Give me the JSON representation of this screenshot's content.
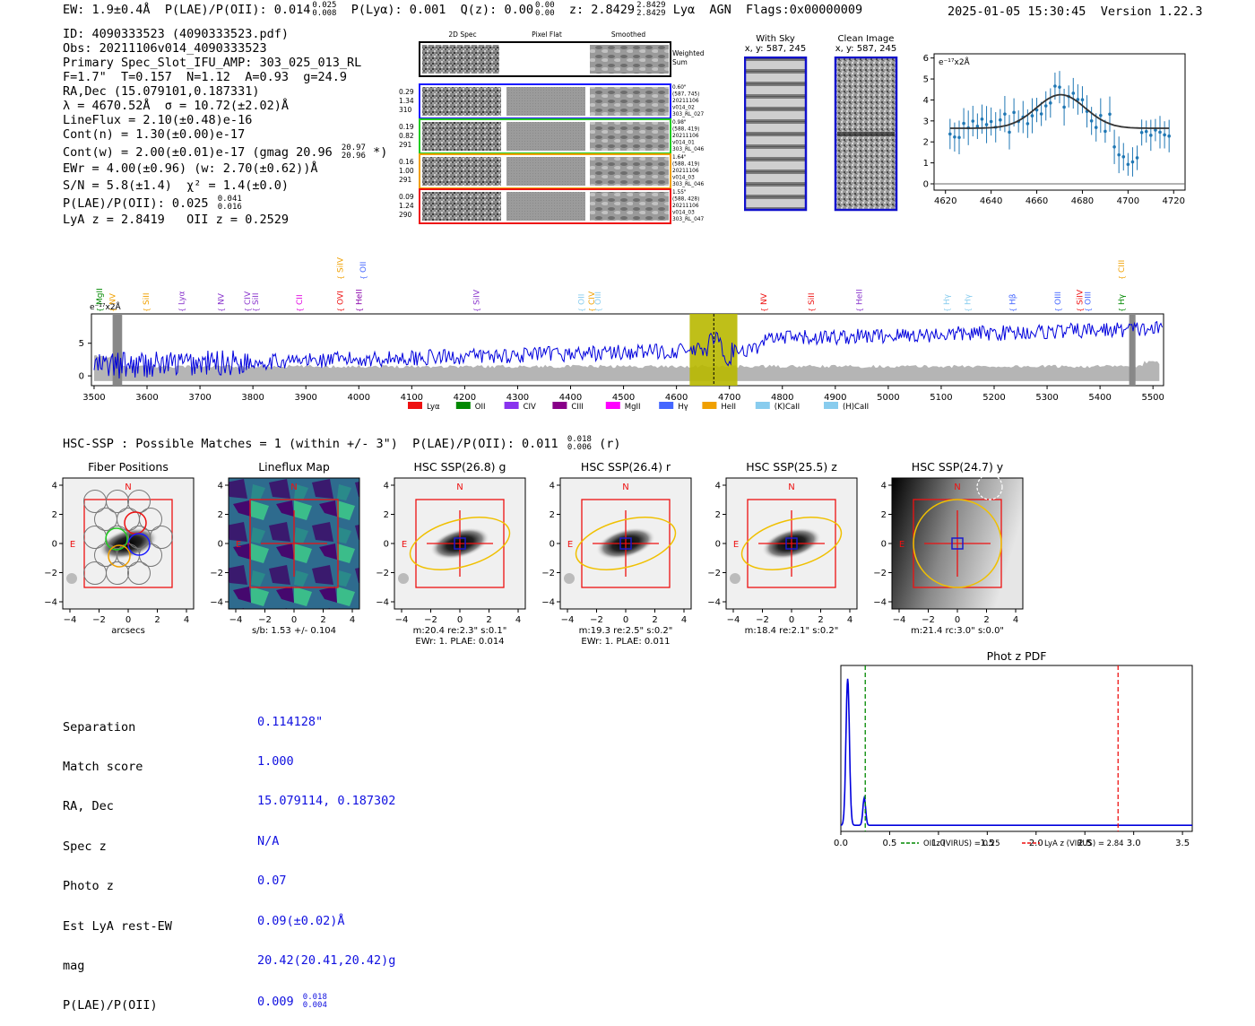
{
  "header": {
    "ew_label": "EW: 1.9±0.4Å",
    "plae_label": "P(LAE)/P(OII): 0.014",
    "plae_hi": "0.025",
    "plae_lo": "0.008",
    "plya_label": "P(Lyα): 0.001",
    "qz_label": "Q(z): 0.00",
    "qz_hi": "0.00",
    "qz_lo": "0.00",
    "z_label": "z: 2.8429",
    "z_hi": "2.8429",
    "z_lo": "2.8429",
    "line_name": "Lyα",
    "class": "AGN",
    "flags": "Flags:0x00000009",
    "timestamp": "2025-01-05 15:30:45",
    "version": "Version 1.22.3"
  },
  "info": {
    "id": "ID: 4090333523 (4090333523.pdf)",
    "obs": "Obs: 20211106v014_4090333523",
    "primary": "Primary Spec_Slot_IFU_AMP: 303_025_013_RL",
    "params": "F=1.7\"  T=0.157  N=1.12  A=0.93  g=24.9",
    "radec": "RA,Dec (15.079101,0.187331)",
    "lambda": "λ = 4670.52Å  σ = 10.72(±2.02)Å",
    "lineflux": "LineFlux = 2.10(±0.48)e-16",
    "cont_n": "Cont(n) = 1.30(±0.00)e-17",
    "cont_w": "Cont(w) = 2.00(±0.01)e-17 (gmag 20.96",
    "cont_w_hi": "20.97",
    "cont_w_lo": "20.96",
    "cont_w_end": "*)",
    "ewr": "EWr = 4.00(±0.96) (w: 2.70(±0.62))Å",
    "sn": "S/N = 5.8(±1.4)  χ² = 1.4(±0.0)",
    "plae": "P(LAE)/P(OII): 0.025",
    "plae_hi": "0.041",
    "plae_lo": "0.016",
    "z": "LyA z = 2.8419   OII z = 0.2529"
  },
  "cutouts": {
    "col_headers": [
      "2D Spec",
      "Pixel Flat",
      "Smoothed"
    ],
    "weighted_label": "Weighted Sum",
    "rows": [
      {
        "left": [
          "0.29",
          "1.34",
          "310"
        ],
        "right": [
          "0.60\"",
          "(587, 745)",
          "20211106",
          "v014_02",
          "303_RL_027"
        ],
        "color": "#1a1aff"
      },
      {
        "left": [
          "0.19",
          "0.82",
          "291"
        ],
        "right": [
          "0.98\"",
          "(588, 419)",
          "20211106",
          "v014_01",
          "303_RL_046"
        ],
        "color": "#22cc22"
      },
      {
        "left": [
          "0.16",
          "1.00",
          "291"
        ],
        "right": [
          "1.64\"",
          "(588, 419)",
          "20211106",
          "v014_03",
          "303_RL_046"
        ],
        "color": "#f0a000"
      },
      {
        "left": [
          "0.09",
          "1.24",
          "290"
        ],
        "right": [
          "1.55\"",
          "(588, 428)",
          "20211106",
          "v014_03",
          "303_RL_047"
        ],
        "color": "#ee1111"
      }
    ]
  },
  "sky": {
    "with_sky_title": "With Sky",
    "with_sky_coords": "x, y: 587, 245",
    "clean_title": "Clean Image",
    "clean_coords": "x, y: 587, 245"
  },
  "fit_chart": {
    "unit_label": "e⁻¹⁷x2Å",
    "x_ticks": [
      "4620",
      "4640",
      "4660",
      "4680",
      "4700",
      "4720"
    ],
    "y_ticks": [
      "0",
      "1",
      "2",
      "3",
      "4",
      "5",
      "6"
    ]
  },
  "spectrum": {
    "unit_label": "e⁻¹⁷x2Å",
    "x_ticks": [
      "3500",
      "3600",
      "3700",
      "3800",
      "3900",
      "4000",
      "4100",
      "4200",
      "4300",
      "4400",
      "4500",
      "4600",
      "4700",
      "4800",
      "4900",
      "5000",
      "5100",
      "5200",
      "5300",
      "5400",
      "5500"
    ],
    "y_ticks": [
      "0",
      "5"
    ],
    "line_labels": [
      {
        "name": "MgII",
        "w": 3510,
        "color": "#008800",
        "row": 0
      },
      {
        "name": "NV",
        "w": 3535,
        "color": "#f0a000",
        "row": 0
      },
      {
        "name": "SiII",
        "w": 3598,
        "color": "#f0a000",
        "row": 0
      },
      {
        "name": "Lyα",
        "w": 3665,
        "color": "#8833cc",
        "row": 0
      },
      {
        "name": "NV",
        "w": 3740,
        "color": "#8833cc",
        "row": 0
      },
      {
        "name": "CIV",
        "w": 3790,
        "color": "#8833cc",
        "row": 0
      },
      {
        "name": "SiII",
        "w": 3805,
        "color": "#8833cc",
        "row": 0
      },
      {
        "name": "CII",
        "w": 3888,
        "color": "#e000e0",
        "row": 0
      },
      {
        "name": "OVI",
        "w": 3965,
        "color": "#ee1111",
        "row": 0
      },
      {
        "name": "HeII",
        "w": 4000,
        "color": "#8800aa",
        "row": 0
      },
      {
        "name": "SiIV",
        "w": 3965,
        "color": "#f0a000",
        "row": 1
      },
      {
        "name": "OII",
        "w": 4008,
        "color": "#4466ff",
        "row": 1
      },
      {
        "name": "SiIV",
        "w": 4222,
        "color": "#8833cc",
        "row": 0
      },
      {
        "name": "OII",
        "w": 4420,
        "color": "#88ccee",
        "row": 0
      },
      {
        "name": "CIV",
        "w": 4440,
        "color": "#f0a000",
        "row": 0
      },
      {
        "name": "OIII",
        "w": 4452,
        "color": "#88ccee",
        "row": 0
      },
      {
        "name": "NV",
        "w": 4765,
        "color": "#ee1111",
        "row": 0
      },
      {
        "name": "SiII",
        "w": 4855,
        "color": "#ee1111",
        "row": 0
      },
      {
        "name": "HeII",
        "w": 4945,
        "color": "#8833cc",
        "row": 0
      },
      {
        "name": "Hγ",
        "w": 5110,
        "color": "#88ccee",
        "row": 0
      },
      {
        "name": "Hγ",
        "w": 5150,
        "color": "#88ccee",
        "row": 0
      },
      {
        "name": "Hβ",
        "w": 5235,
        "color": "#4466ff",
        "row": 0
      },
      {
        "name": "OIII",
        "w": 5320,
        "color": "#4466ff",
        "row": 0
      },
      {
        "name": "SiIV",
        "w": 5362,
        "color": "#ee1111",
        "row": 0
      },
      {
        "name": "OIII",
        "w": 5377,
        "color": "#4466ff",
        "row": 0
      },
      {
        "name": "Hγ",
        "w": 5440,
        "color": "#008800",
        "row": 0
      },
      {
        "name": "CIII",
        "w": 5440,
        "color": "#f0a000",
        "row": 1
      }
    ],
    "legend": [
      {
        "name": "Lyα",
        "color": "#ee1111"
      },
      {
        "name": "OII",
        "color": "#008800"
      },
      {
        "name": "CIV",
        "color": "#8833ee"
      },
      {
        "name": "CIII",
        "color": "#880088"
      },
      {
        "name": "MgII",
        "color": "#ff00ff"
      },
      {
        "name": "Hγ",
        "color": "#4466ff"
      },
      {
        "name": "HeII",
        "color": "#f0a000"
      },
      {
        "name": "(K)CaII",
        "color": "#88ccee"
      },
      {
        "name": "(H)CaII",
        "color": "#88ccee"
      }
    ]
  },
  "hsc": {
    "title": "HSC-SSP : Possible Matches = 1 (within +/- 3\")  P(LAE)/P(OII): 0.011",
    "title_hi": "0.018",
    "title_lo": "0.006",
    "title_end": "(r)",
    "panels": [
      {
        "title": "Fiber Positions",
        "caption1": "arcsecs",
        "caption2": ""
      },
      {
        "title": "Lineflux Map",
        "caption1": "s/b: 1.53 +/- 0.104",
        "caption2": ""
      },
      {
        "title": "HSC SSP(26.8) g",
        "caption1": "m:20.4  re:2.3\"  s:0.1\"",
        "caption2": "EWr: 1. PLAE: 0.014"
      },
      {
        "title": "HSC SSP(26.4) r",
        "caption1": "m:19.3  re:2.5\"  s:0.2\"",
        "caption2": "EWr: 1. PLAE: 0.011"
      },
      {
        "title": "HSC SSP(25.5) z",
        "caption1": "m:18.4  re:2.1\"  s:0.2\"",
        "caption2": ""
      },
      {
        "title": "HSC SSP(24.7) y",
        "caption1": "m:21.4  rc:3.0\"  s:0.0\"",
        "caption2": ""
      }
    ],
    "axis_ticks": [
      "−4",
      "−2",
      "0",
      "2",
      "4"
    ],
    "n_label": "N",
    "e_label": "E"
  },
  "match": {
    "labels": [
      "Separation",
      "Match score",
      "RA, Dec",
      "Spec z",
      "Photo z",
      "Est LyA rest-EW",
      "mag",
      "P(LAE)/P(OII)"
    ],
    "values": [
      "0.114128\"",
      "1.000",
      "15.079114, 0.187302",
      "N/A",
      "0.07",
      "0.09(±0.02)Å",
      "20.42(20.41,20.42)g",
      "0.009"
    ],
    "plae_hi": "0.018",
    "plae_lo": "0.004"
  },
  "photz": {
    "title": "Phot z PDF",
    "x_ticks": [
      "0.0",
      "0.5",
      "1.0",
      "1.5",
      "2.0",
      "2.5",
      "3.0",
      "3.5"
    ],
    "legend_oii": "OII z (VIRUS) = 0.25",
    "legend_lya": "LyA z (VIRUS) = 2.84"
  }
}
